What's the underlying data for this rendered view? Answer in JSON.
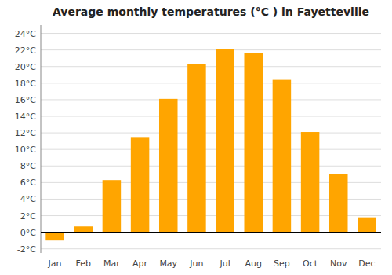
{
  "chart_data": {
    "type": "bar",
    "title": "Average monthly temperatures (°C ) in Fayetteville",
    "categories": [
      "Jan",
      "Feb",
      "Mar",
      "Apr",
      "May",
      "Jun",
      "Jul",
      "Aug",
      "Sep",
      "Oct",
      "Nov",
      "Dec"
    ],
    "values": [
      -1.0,
      0.7,
      6.3,
      11.5,
      16.1,
      20.3,
      22.1,
      21.6,
      18.4,
      12.1,
      7.0,
      1.8
    ],
    "color": "#FFA500",
    "ylim": [
      -2.5,
      25
    ],
    "yticks": [
      {
        "value": -2,
        "label": "-2°C"
      },
      {
        "value": 0,
        "label": "0°C"
      },
      {
        "value": 2,
        "label": "2°C"
      },
      {
        "value": 4,
        "label": "4°C"
      },
      {
        "value": 6,
        "label": "6°C"
      },
      {
        "value": 8,
        "label": "8°C"
      },
      {
        "value": 10,
        "label": "10°C"
      },
      {
        "value": 12,
        "label": "12°C"
      },
      {
        "value": 14,
        "label": "14°C"
      },
      {
        "value": 16,
        "label": "16°C"
      },
      {
        "value": 18,
        "label": "18°C"
      },
      {
        "value": 20,
        "label": "20°C"
      },
      {
        "value": 22,
        "label": "22°C"
      },
      {
        "value": 24,
        "label": "24°C"
      }
    ],
    "grid": true
  }
}
